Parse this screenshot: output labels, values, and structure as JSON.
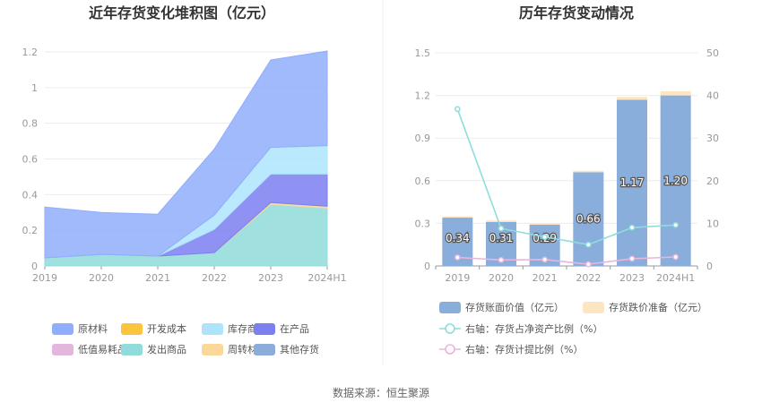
{
  "source": "数据来源：恒生聚源",
  "chart_data": [
    {
      "type": "area",
      "stacked": true,
      "title": "近年存货变化堆积图（亿元）",
      "x": [
        "2019",
        "2020",
        "2021",
        "2022",
        "2023",
        "2024H1"
      ],
      "yticks": [
        "0",
        "0.2",
        "0.4",
        "0.6",
        "0.8",
        "1",
        "1.2"
      ],
      "ylim": [
        0,
        1.2
      ],
      "series": [
        {
          "name": "原材料",
          "color": "#8faefc",
          "values": [
            0.285,
            0.235,
            0.235,
            0.37,
            0.49,
            0.53
          ]
        },
        {
          "name": "开发成本",
          "color": "#fcc43d",
          "values": [
            0,
            0,
            0,
            0,
            0,
            0
          ]
        },
        {
          "name": "库存商品",
          "color": "#aee4fb",
          "values": [
            0,
            0,
            0,
            0.08,
            0.15,
            0.16
          ]
        },
        {
          "name": "在产品",
          "color": "#7b7ff0",
          "values": [
            0,
            0,
            0,
            0.13,
            0.16,
            0.18
          ]
        },
        {
          "name": "低值易耗品",
          "color": "#e3b6dd",
          "values": [
            0,
            0,
            0,
            0,
            0,
            0
          ]
        },
        {
          "name": "发出商品",
          "color": "#8fdcdb",
          "values": [
            0.045,
            0.065,
            0.055,
            0.075,
            0.345,
            0.325
          ]
        },
        {
          "name": "周转材料",
          "color": "#fcd79a",
          "values": [
            0,
            0,
            0,
            0,
            0.01,
            0.01
          ]
        },
        {
          "name": "其他存货",
          "color": "#8cacd9",
          "values": [
            0,
            0,
            0,
            0,
            0,
            0
          ]
        }
      ]
    },
    {
      "type": "bar",
      "stacked": true,
      "title": "历年存货变动情况",
      "x": [
        "2019",
        "2020",
        "2021",
        "2022",
        "2023",
        "2024H1"
      ],
      "yticks_left": [
        "0",
        "0.3",
        "0.6",
        "0.9",
        "1.2",
        "1.5"
      ],
      "yticks_right": [
        "0",
        "10",
        "20",
        "30",
        "40",
        "50"
      ],
      "ylim_left": [
        0,
        1.5
      ],
      "ylim_right": [
        0,
        50
      ],
      "bars": [
        {
          "name": "存货账面价值（亿元）",
          "color": "#8aaedc",
          "values": [
            0.34,
            0.31,
            0.29,
            0.66,
            1.17,
            1.2
          ],
          "labels": [
            "0.34",
            "0.31",
            "0.29",
            "0.66",
            "1.17",
            "1.20"
          ]
        },
        {
          "name": "存货跌价准备（亿元）",
          "color": "#fde5c2",
          "values": [
            0.01,
            0.01,
            0.01,
            0.01,
            0.02,
            0.03
          ]
        }
      ],
      "lines": [
        {
          "name": "右轴：存货占净资产比例（%）",
          "color": "#8fdcdc",
          "values": [
            36.8,
            8.8,
            6.8,
            5.0,
            9.0,
            9.6
          ]
        },
        {
          "name": "右轴：存货计提比例（%）",
          "color": "#eab5dc",
          "values": [
            2.0,
            1.4,
            1.5,
            0.4,
            1.7,
            2.1
          ]
        }
      ]
    }
  ]
}
